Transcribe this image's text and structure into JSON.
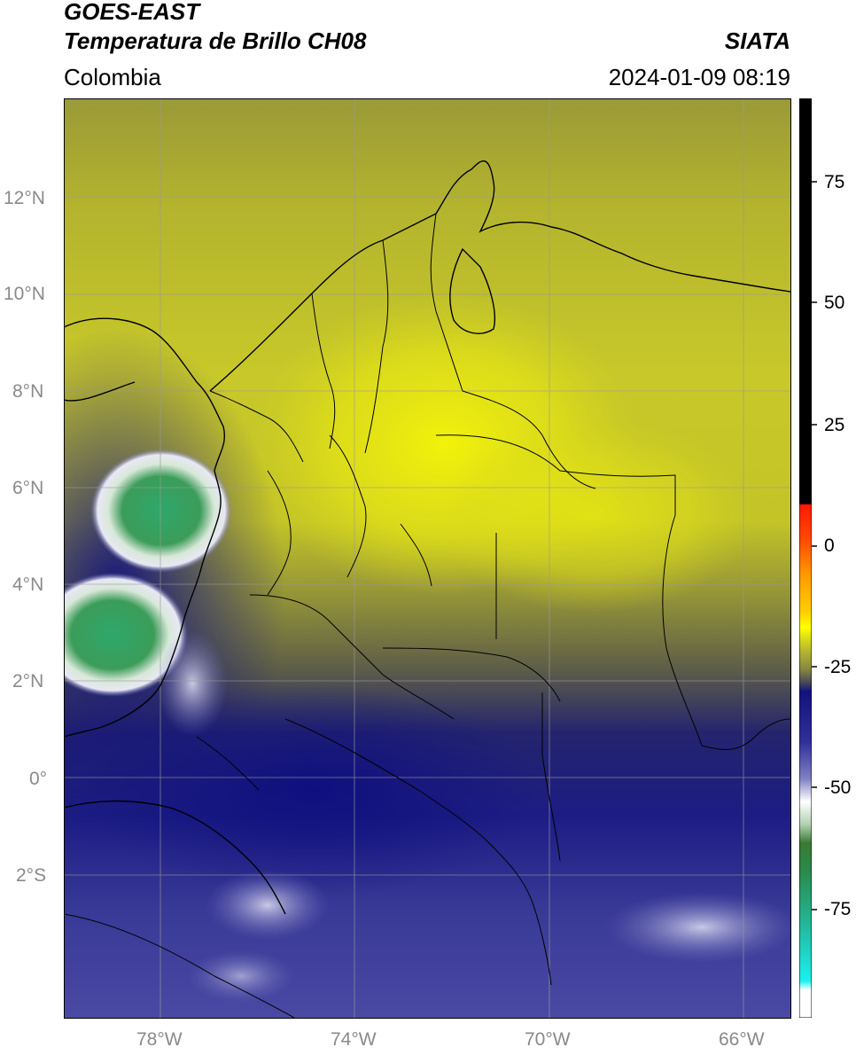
{
  "header": {
    "satellite": "GOES-EAST",
    "product": "Temperatura de Brillo CH08",
    "region": "Colombia",
    "brand": "SIATA",
    "datetime": "2024-01-09 08:19"
  },
  "map": {
    "lat_labels": [
      "12°N",
      "10°N",
      "8°N",
      "6°N",
      "4°N",
      "2°N",
      "0°",
      "2°S"
    ],
    "lon_labels": [
      "78°W",
      "74°W",
      "70°W",
      "66°W"
    ],
    "grid": true,
    "projection": "PlateCarree",
    "extent_lon": [
      -80,
      -65
    ],
    "extent_lat": [
      -5.2,
      14
    ]
  },
  "colorbar": {
    "ticks": [
      75,
      50,
      25,
      0,
      -25,
      -50,
      -75
    ],
    "tick_labels": [
      "75",
      "50",
      "25",
      "0",
      "-25",
      "-50",
      "-75"
    ],
    "range": [
      -95,
      90
    ],
    "colors": {
      "black": "#000000",
      "red": "#ff2200",
      "orange": "#ff9900",
      "yellow": "#ffff00",
      "olive": "#8a8a30",
      "navy": "#1a1a8a",
      "white": "#ffffff",
      "green": "#2a7a2a",
      "teal": "#22c8c0"
    }
  }
}
